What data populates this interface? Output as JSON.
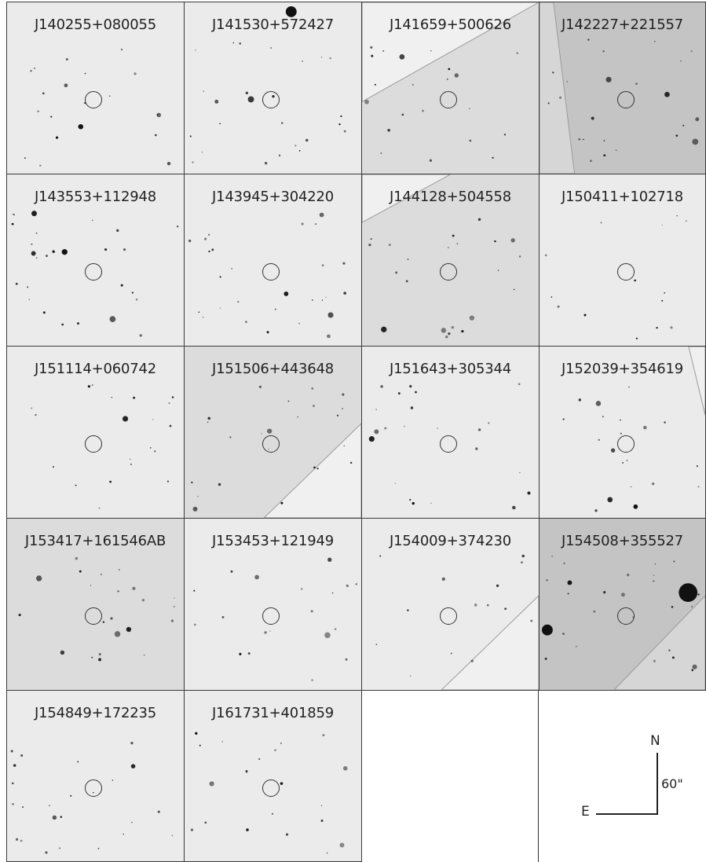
{
  "panels": [
    {
      "name": "J140255+080055",
      "tone": "light"
    },
    {
      "name": "J141530+572427",
      "tone": "light"
    },
    {
      "name": "J141659+500626",
      "tone": "medium",
      "edge": "diag-up"
    },
    {
      "name": "J142227+221557",
      "tone": "dark",
      "edge": "diag-left"
    },
    {
      "name": "J143553+112948",
      "tone": "light"
    },
    {
      "name": "J143945+304220",
      "tone": "light"
    },
    {
      "name": "J144128+504558",
      "tone": "medium",
      "edge": "diag-top"
    },
    {
      "name": "J150411+102718",
      "tone": "light"
    },
    {
      "name": "J151114+060742",
      "tone": "light"
    },
    {
      "name": "J151506+443648",
      "tone": "medium",
      "edge": "diag-bottom"
    },
    {
      "name": "J151643+305344",
      "tone": "light"
    },
    {
      "name": "J152039+354619",
      "tone": "light",
      "edge": "diag-right"
    },
    {
      "name": "J153417+161546AB",
      "tone": "medium"
    },
    {
      "name": "J153453+121949",
      "tone": "light"
    },
    {
      "name": "J154009+374230",
      "tone": "light",
      "edge": "diag-bottom"
    },
    {
      "name": "J154508+355527",
      "tone": "dark",
      "edge": "diag-bottom"
    },
    {
      "name": "J154849+172235",
      "tone": "light"
    },
    {
      "name": "J161731+401859",
      "tone": "light"
    }
  ],
  "orientation": {
    "north": "N",
    "east": "E",
    "scale": "60\""
  },
  "colors": {
    "light": "#ebebeb",
    "medium": "#dcdcdc",
    "dark": "#c4c4c4",
    "star": "#111111"
  }
}
